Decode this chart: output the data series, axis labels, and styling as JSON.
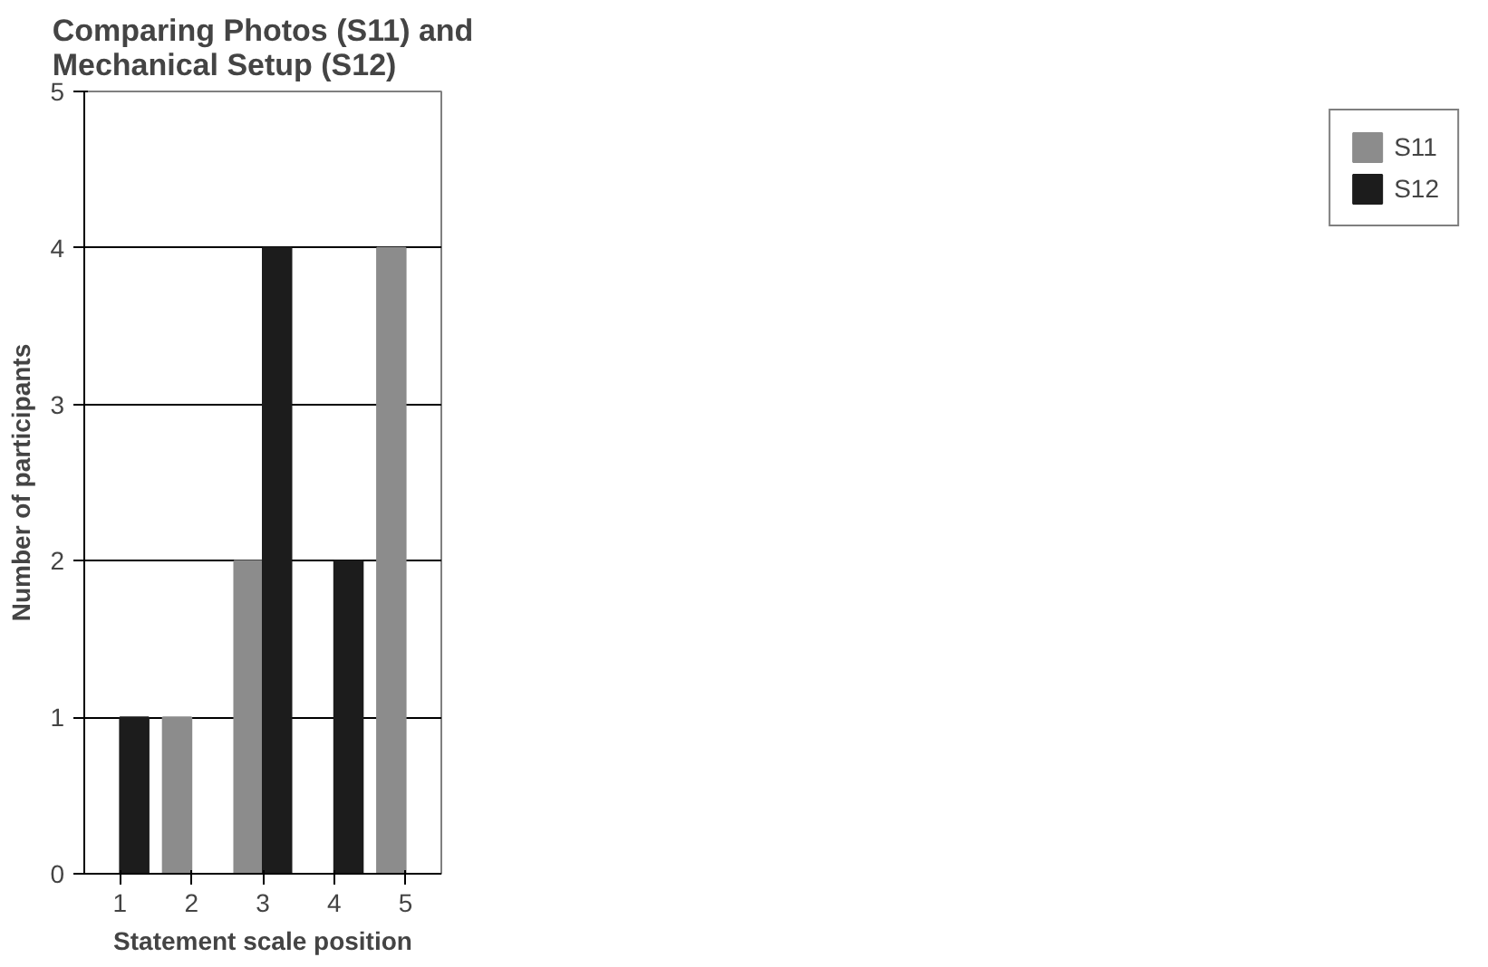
{
  "chart_data": {
    "type": "bar",
    "title": "Comparing Photos (S11) and Mechanical Setup (S12)",
    "xlabel": "Statement scale position",
    "ylabel": "Number of participants",
    "categories": [
      "1",
      "2",
      "3",
      "4",
      "5"
    ],
    "series": [
      {
        "name": "S11",
        "color": "#8c8c8c",
        "values": [
          0,
          1,
          2,
          0,
          4
        ]
      },
      {
        "name": "S12",
        "color": "#1c1c1c",
        "values": [
          1,
          0,
          4,
          2,
          0
        ]
      }
    ],
    "ylim": [
      0,
      5
    ],
    "yticks": [
      0,
      1,
      2,
      3,
      4,
      5
    ],
    "grid": "y",
    "legend": "right"
  }
}
